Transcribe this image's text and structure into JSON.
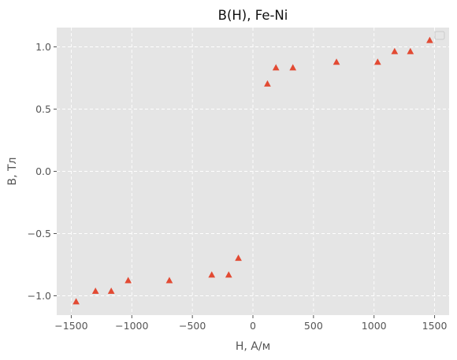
{
  "chart_data": {
    "type": "scatter",
    "title": "B(H), Fe-Ni",
    "xlabel": "H, А/м",
    "ylabel": "B, Тл",
    "xlim": [
      -1620,
      1620
    ],
    "ylim": [
      -1.155,
      1.155
    ],
    "xticks": [
      -1500,
      -1000,
      -500,
      0,
      500,
      1000,
      1500
    ],
    "xtick_labels": [
      "−1500",
      "−1000",
      "−500",
      "0",
      "500",
      "1000",
      "1500"
    ],
    "yticks": [
      -1.0,
      -0.5,
      0.0,
      0.5,
      1.0
    ],
    "ytick_labels": [
      "−1.0",
      "−0.5",
      "0.0",
      "0.5",
      "1.0"
    ],
    "grid": true,
    "legend": "top-right",
    "marker": "triangle",
    "colors": {
      "marker": "#e24a33",
      "plot_background": "#e5e5e5",
      "grid": "#ffffff"
    },
    "series": [
      {
        "x": [
          -1460,
          -1300,
          -1170,
          -1030,
          -690,
          -340,
          -200,
          -120,
          120,
          190,
          330,
          690,
          1030,
          1170,
          1300,
          1460
        ],
        "y": [
          -1.05,
          -0.965,
          -0.965,
          -0.88,
          -0.88,
          -0.835,
          -0.835,
          -0.7,
          0.7,
          0.83,
          0.83,
          0.875,
          0.875,
          0.96,
          0.96,
          1.05
        ]
      }
    ]
  }
}
